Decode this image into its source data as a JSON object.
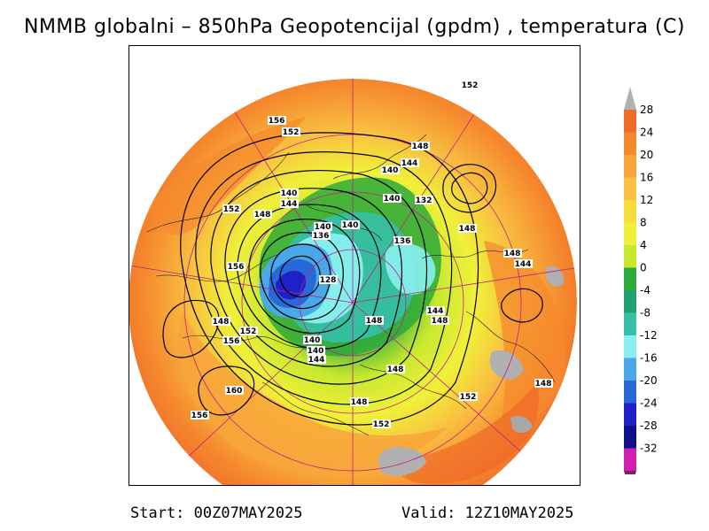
{
  "title": "NMMB globalni – 850hPa Geopotencijal (gpdm) , temperatura (C)",
  "footer": {
    "start": "Start: 00Z07MAY2025",
    "valid": "Valid: 12Z10MAY2025"
  },
  "colorbar": {
    "levels": [
      28,
      24,
      20,
      16,
      12,
      8,
      4,
      0,
      -4,
      -8,
      -12,
      -16,
      -20,
      -24,
      -28,
      -32
    ],
    "colors": [
      "#f06a28",
      "#f5892e",
      "#f8a53a",
      "#f9c044",
      "#f8dc3c",
      "#f0f03a",
      "#c8e830",
      "#2eaa3a",
      "#22a070",
      "#36c0a8",
      "#88f0f0",
      "#48a8e8",
      "#2868d8",
      "#2020c8",
      "#10108a",
      "#d020b0"
    ],
    "top_color": "#b0b0b0",
    "bottom_color": "#802060"
  },
  "contour_labels": [
    {
      "text": "152"
    },
    {
      "text": "156"
    },
    {
      "text": "152"
    },
    {
      "text": "148"
    },
    {
      "text": "144"
    },
    {
      "text": "140"
    },
    {
      "text": "140"
    },
    {
      "text": "132"
    },
    {
      "text": "140"
    },
    {
      "text": "144"
    },
    {
      "text": "140"
    },
    {
      "text": "152"
    },
    {
      "text": "148"
    },
    {
      "text": "140"
    },
    {
      "text": "136"
    },
    {
      "text": "136"
    },
    {
      "text": "148"
    },
    {
      "text": "144"
    },
    {
      "text": "156"
    },
    {
      "text": "128"
    },
    {
      "text": "148"
    },
    {
      "text": "144"
    },
    {
      "text": "148"
    },
    {
      "text": "148"
    },
    {
      "text": "152"
    },
    {
      "text": "148"
    },
    {
      "text": "156"
    },
    {
      "text": "140"
    },
    {
      "text": "140"
    },
    {
      "text": "144"
    },
    {
      "text": "148"
    },
    {
      "text": "148"
    },
    {
      "text": "160"
    },
    {
      "text": "152"
    },
    {
      "text": "148"
    },
    {
      "text": "156"
    },
    {
      "text": "152"
    }
  ]
}
